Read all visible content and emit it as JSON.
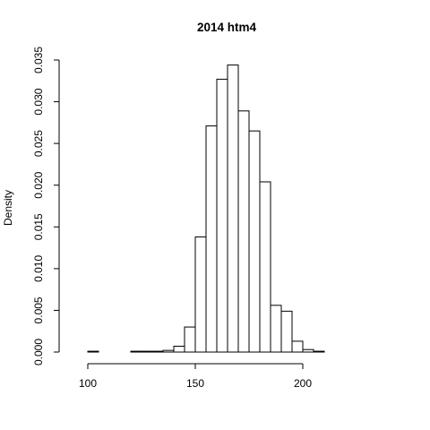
{
  "chart_data": {
    "type": "bar",
    "title": "2014 htm4",
    "xlabel": "",
    "ylabel": "Density",
    "bin_width": 5,
    "bin_starts": [
      90,
      95,
      100,
      105,
      110,
      115,
      120,
      125,
      130,
      135,
      140,
      145,
      150,
      155,
      160,
      165,
      170,
      175,
      180,
      185,
      190,
      195,
      200,
      205,
      210,
      215,
      220,
      225,
      230,
      235
    ],
    "values": [
      0.0,
      0.0,
      0.0001,
      0.0,
      0.0,
      0.0,
      0.0001,
      0.0001,
      0.0001,
      0.0002,
      0.0007,
      0.003,
      0.0138,
      0.0271,
      0.0327,
      0.0344,
      0.0289,
      0.0265,
      0.0204,
      0.0056,
      0.0049,
      0.0013,
      0.0003,
      0.0001,
      0.0,
      0.0,
      0.0,
      0.0,
      0.0,
      0.0
    ],
    "xlim": [
      90,
      240
    ],
    "ylim": [
      0,
      0.035
    ],
    "x_ticks": [
      "100",
      "150",
      "200"
    ],
    "x_tick_values": [
      100,
      150,
      200
    ],
    "y_ticks": [
      "0.000",
      "0.005",
      "0.010",
      "0.015",
      "0.020",
      "0.025",
      "0.030",
      "0.035"
    ],
    "y_tick_values": [
      0,
      0.005,
      0.01,
      0.015,
      0.02,
      0.025,
      0.03,
      0.035
    ],
    "grid": false,
    "legend": "none"
  }
}
